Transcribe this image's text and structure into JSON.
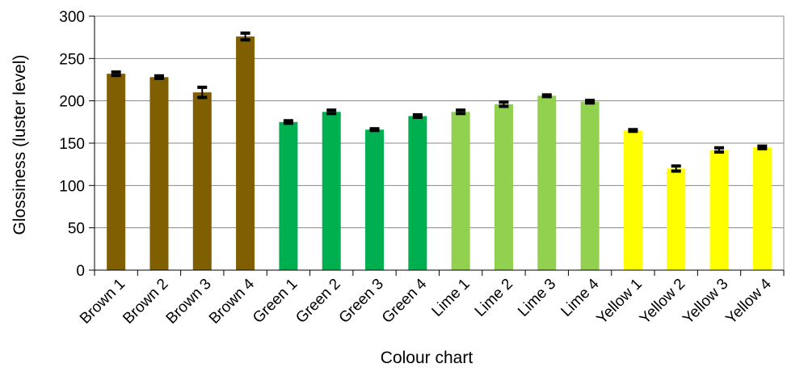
{
  "chart_data": {
    "type": "bar",
    "title": "",
    "xlabel": "Colour chart",
    "ylabel": "Glossiness (luster level)",
    "ylim": [
      0,
      300
    ],
    "yticks": [
      0,
      50,
      100,
      150,
      200,
      250,
      300
    ],
    "grid": true,
    "legend": "none",
    "categories": [
      "Brown 1",
      "Brown 2",
      "Brown 3",
      "Brown 4",
      "Green 1",
      "Green 2",
      "Green 3",
      "Green 4",
      "Lime 1",
      "Lime 2",
      "Lime 3",
      "Lime 4",
      "Yellow 1",
      "Yellow 2",
      "Yellow 3",
      "Yellow 4"
    ],
    "values": [
      232,
      228,
      210,
      276,
      175,
      187,
      166,
      182,
      187,
      196,
      206,
      199,
      165,
      120,
      142,
      145
    ],
    "error": [
      2,
      1.5,
      6,
      4,
      1.5,
      2,
      1,
      1.5,
      2,
      2.5,
      1,
      1.5,
      1,
      3,
      2.5,
      1.5
    ],
    "colors": [
      "#7f5f00",
      "#7f5f00",
      "#7f5f00",
      "#7f5f00",
      "#00b050",
      "#00b050",
      "#00b050",
      "#00b050",
      "#92d050",
      "#92d050",
      "#92d050",
      "#92d050",
      "#ffff00",
      "#ffff00",
      "#ffff00",
      "#ffff00"
    ]
  }
}
